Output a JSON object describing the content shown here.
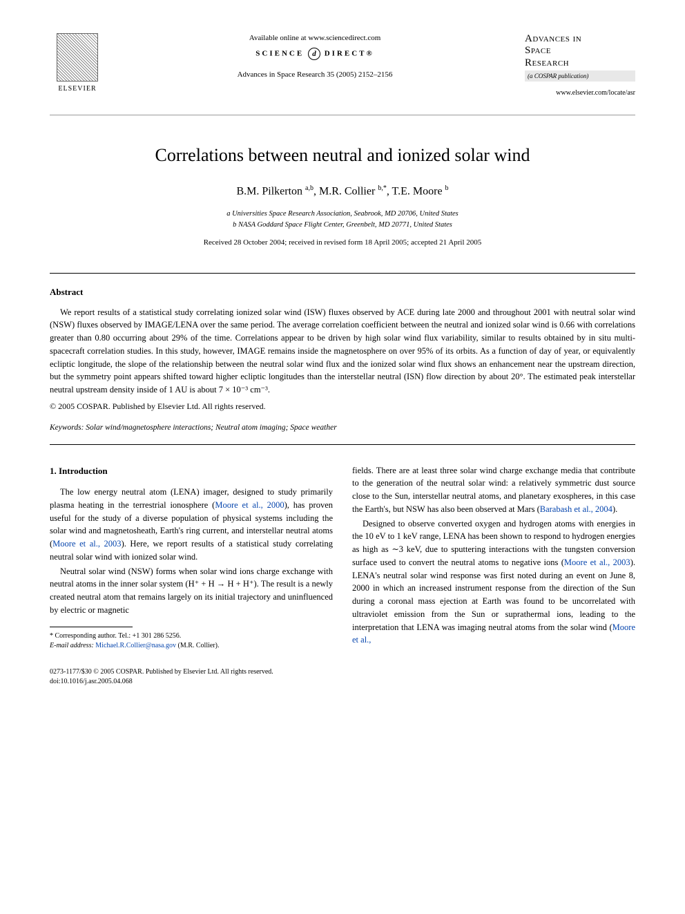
{
  "header": {
    "publisher_label": "ELSEVIER",
    "available_online": "Available online at www.sciencedirect.com",
    "science_direct_left": "SCIENCE",
    "science_direct_glyph": "d",
    "science_direct_right": "DIRECT®",
    "citation": "Advances in Space Research 35 (2005) 2152–2156",
    "journal_line1": "Advances in",
    "journal_line2": "Space",
    "journal_line3": "Research",
    "cospar": "(a COSPAR publication)",
    "journal_url": "www.elsevier.com/locate/asr"
  },
  "title": "Correlations between neutral and ionized solar wind",
  "authors": {
    "a1_name": "B.M. Pilkerton ",
    "a1_sup": "a,b",
    "sep1": ", ",
    "a2_name": "M.R. Collier ",
    "a2_sup": "b,*",
    "sep2": ", ",
    "a3_name": "T.E. Moore ",
    "a3_sup": "b"
  },
  "affiliations": {
    "a": "a Universities Space Research Association, Seabrook, MD 20706, United States",
    "b": "b NASA Goddard Space Flight Center, Greenbelt, MD 20771, United States"
  },
  "dates": "Received 28 October 2004; received in revised form 18 April 2005; accepted 21 April 2005",
  "abstract": {
    "heading": "Abstract",
    "text": "We report results of a statistical study correlating ionized solar wind (ISW) fluxes observed by ACE during late 2000 and throughout 2001 with neutral solar wind (NSW) fluxes observed by IMAGE/LENA over the same period. The average correlation coefficient between the neutral and ionized solar wind is 0.66 with correlations greater than 0.80 occurring about 29% of the time. Correlations appear to be driven by high solar wind flux variability, similar to results obtained by in situ multi-spacecraft correlation studies. In this study, however, IMAGE remains inside the magnetosphere on over 95% of its orbits. As a function of day of year, or equivalently ecliptic longitude, the slope of the relationship between the neutral solar wind flux and the ionized solar wind flux shows an enhancement near the upstream direction, but the symmetry point appears shifted toward higher ecliptic longitudes than the interstellar neutral (ISN) flow direction by about 20°. The estimated peak interstellar neutral upstream density inside of 1 AU is about 7 × 10⁻³ cm⁻³.",
    "copyright": "© 2005 COSPAR. Published by Elsevier Ltd. All rights reserved."
  },
  "keywords": {
    "label": "Keywords:",
    "text": " Solar wind/magnetosphere interactions; Neutral atom imaging; Space weather"
  },
  "body": {
    "section1_heading": "1. Introduction",
    "p1a": "The low energy neutral atom (LENA) imager, designed to study primarily plasma heating in the terrestrial ionosphere (",
    "p1_link1": "Moore et al., 2000",
    "p1b": "), has proven useful for the study of a diverse population of physical systems including the solar wind and magnetosheath, Earth's ring current, and interstellar neutral atoms (",
    "p1_link2": "Moore et al., 2003",
    "p1c": "). Here, we report results of a statistical study correlating neutral solar wind with ionized solar wind.",
    "p2": "Neutral solar wind (NSW) forms when solar wind ions charge exchange with neutral atoms in the inner solar system (H⁺ + H → H + H⁺). The result is a newly created neutral atom that remains largely on its initial trajectory and uninfluenced by electric or magnetic",
    "p3a": "fields. There are at least three solar wind charge exchange media that contribute to the generation of the neutral solar wind: a relatively symmetric dust source close to the Sun, interstellar neutral atoms, and planetary exospheres, in this case the Earth's, but NSW has also been observed at Mars (",
    "p3_link1": "Barabash et al., 2004",
    "p3b": ").",
    "p4a": "Designed to observe converted oxygen and hydrogen atoms with energies in the 10 eV to 1 keV range, LENA has been shown to respond to hydrogen energies as high as ∼3 keV, due to sputtering interactions with the tungsten conversion surface used to convert the neutral atoms to negative ions (",
    "p4_link1": "Moore et al., 2003",
    "p4b": "). LENA's neutral solar wind response was first noted during an event on June 8, 2000 in which an increased instrument response from the direction of the Sun during a coronal mass ejection at Earth was found to be uncorrelated with ultraviolet emission from the Sun or suprathermal ions, leading to the interpretation that LENA was imaging neutral atoms from the solar wind (",
    "p4_link2": "Moore et al.,"
  },
  "footnote": {
    "corresponding": "* Corresponding author. Tel.: +1 301 286 5256.",
    "email_label": "E-mail address: ",
    "email": "Michael.R.Collier@nasa.gov",
    "email_tail": " (M.R. Collier)."
  },
  "footer": {
    "line1": "0273-1177/$30 © 2005 COSPAR. Published by Elsevier Ltd. All rights reserved.",
    "line2": "doi:10.1016/j.asr.2005.04.068"
  }
}
